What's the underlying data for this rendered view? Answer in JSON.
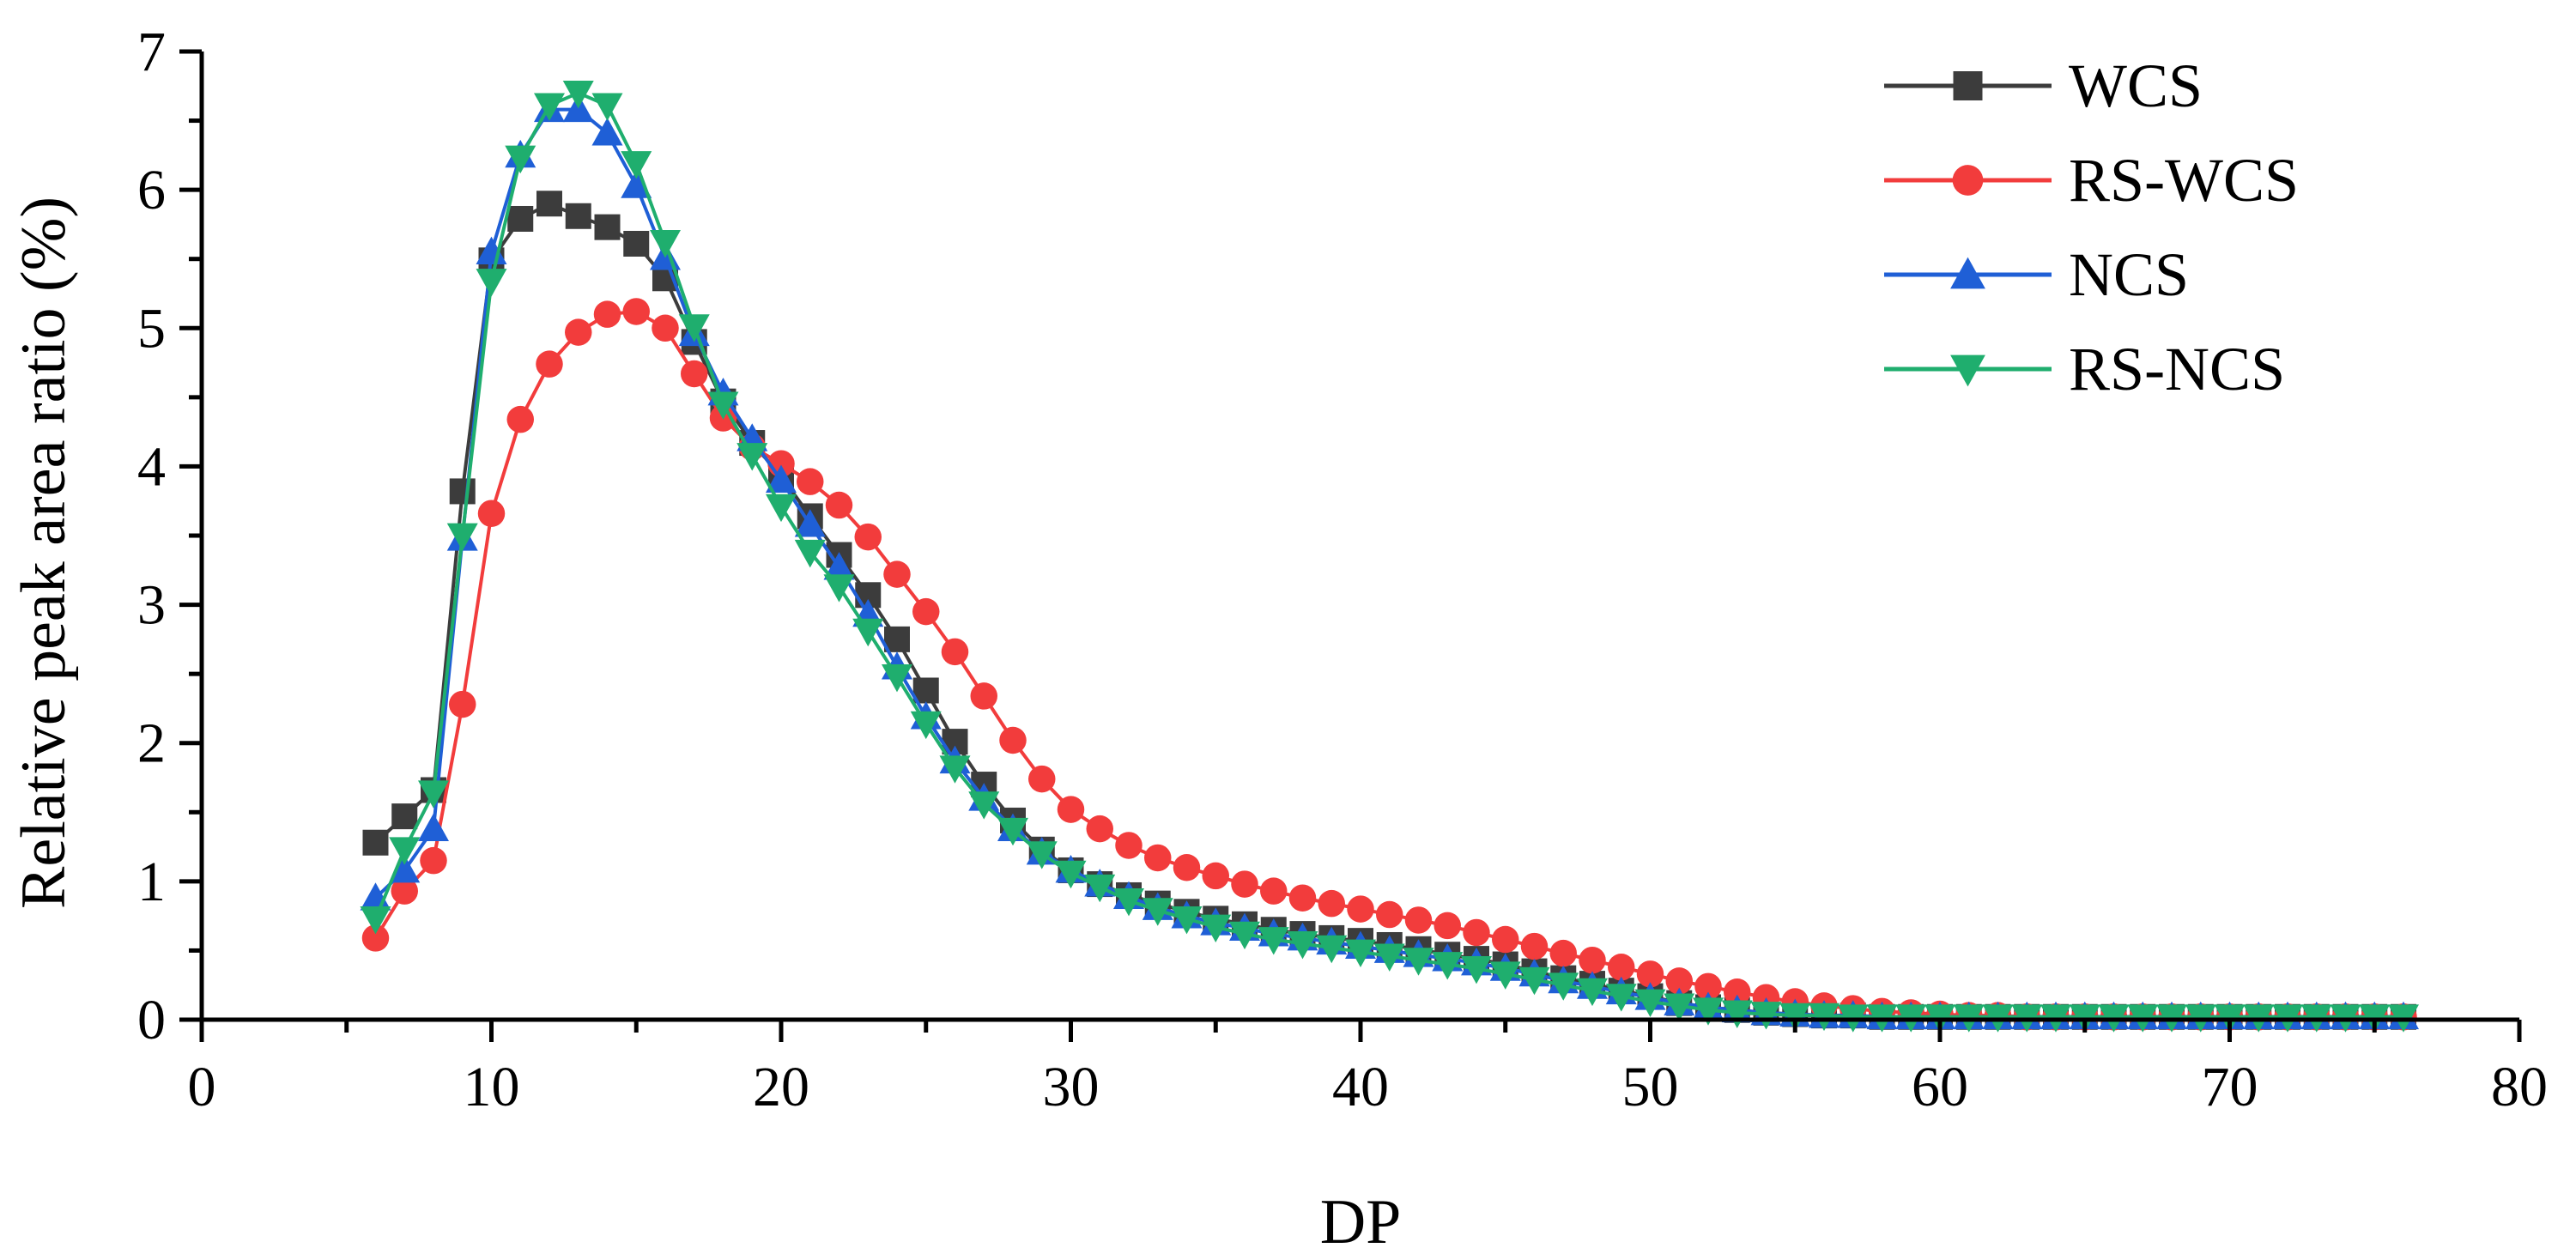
{
  "chart_data": {
    "type": "line",
    "title": "",
    "xlabel": "DP",
    "ylabel": "Relative peak area ratio (%)",
    "xlim": [
      0,
      80
    ],
    "ylim": [
      0,
      7
    ],
    "x_ticks": [
      0,
      10,
      20,
      30,
      40,
      50,
      60,
      70,
      80
    ],
    "x_tick_labels": [
      "0",
      "10",
      "20",
      "30",
      "40",
      "50",
      "60",
      "70",
      "80"
    ],
    "y_ticks": [
      0,
      1,
      2,
      3,
      4,
      5,
      6,
      7
    ],
    "y_tick_labels": [
      "0",
      "1",
      "2",
      "3",
      "4",
      "5",
      "6",
      "7"
    ],
    "grid": false,
    "legend_position": "top-right",
    "x": [
      6,
      7,
      8,
      9,
      10,
      11,
      12,
      13,
      14,
      15,
      16,
      17,
      18,
      19,
      20,
      21,
      22,
      23,
      24,
      25,
      26,
      27,
      28,
      29,
      30,
      31,
      32,
      33,
      34,
      35,
      36,
      37,
      38,
      39,
      40,
      41,
      42,
      43,
      44,
      45,
      46,
      47,
      48,
      49,
      50,
      51,
      52,
      53,
      54,
      55,
      56,
      57,
      58,
      59,
      60,
      61,
      62,
      63,
      64,
      65,
      66,
      67,
      68,
      69,
      70,
      71,
      72,
      73,
      74,
      75,
      76
    ],
    "series": [
      {
        "name": "WCS",
        "color": "#3c3c3c",
        "marker": "square",
        "values": [
          1.28,
          1.47,
          1.66,
          3.82,
          5.49,
          5.79,
          5.9,
          5.81,
          5.73,
          5.61,
          5.36,
          4.9,
          4.47,
          4.17,
          3.93,
          3.64,
          3.36,
          3.07,
          2.75,
          2.38,
          2.01,
          1.7,
          1.44,
          1.23,
          1.08,
          0.98,
          0.9,
          0.84,
          0.78,
          0.73,
          0.69,
          0.65,
          0.62,
          0.59,
          0.57,
          0.54,
          0.51,
          0.47,
          0.44,
          0.4,
          0.35,
          0.3,
          0.26,
          0.21,
          0.17,
          0.12,
          0.09,
          0.07,
          0.05,
          0.04,
          0.03,
          0.03,
          0.02,
          0.02,
          0.02,
          0.02,
          0.02,
          0.02,
          0.02,
          0.02,
          0.02,
          0.02,
          0.02,
          0.02,
          0.02,
          0.02,
          0.02,
          0.02,
          0.02,
          0.02,
          0.02
        ]
      },
      {
        "name": "RS-WCS",
        "color": "#f23c3c",
        "marker": "circle",
        "values": [
          0.59,
          0.93,
          1.15,
          2.28,
          3.66,
          4.34,
          4.74,
          4.97,
          5.1,
          5.12,
          5.0,
          4.67,
          4.35,
          4.14,
          4.02,
          3.89,
          3.72,
          3.49,
          3.22,
          2.95,
          2.66,
          2.34,
          2.02,
          1.74,
          1.52,
          1.38,
          1.26,
          1.17,
          1.1,
          1.04,
          0.98,
          0.93,
          0.88,
          0.84,
          0.8,
          0.76,
          0.72,
          0.68,
          0.63,
          0.58,
          0.53,
          0.48,
          0.43,
          0.38,
          0.33,
          0.28,
          0.24,
          0.2,
          0.16,
          0.13,
          0.1,
          0.08,
          0.06,
          0.05,
          0.04,
          0.03,
          0.03,
          0.02,
          0.02,
          0.02,
          0.02,
          0.02,
          0.02,
          0.02,
          0.02,
          0.02,
          0.02,
          0.02,
          0.02,
          0.02,
          0.02
        ]
      },
      {
        "name": "NCS",
        "color": "#1f5fd6",
        "marker": "triangle-up",
        "values": [
          0.88,
          1.08,
          1.38,
          3.48,
          5.55,
          6.25,
          6.58,
          6.58,
          6.41,
          6.03,
          5.51,
          4.96,
          4.53,
          4.2,
          3.9,
          3.58,
          3.27,
          2.93,
          2.55,
          2.19,
          1.87,
          1.6,
          1.38,
          1.21,
          1.08,
          0.98,
          0.89,
          0.81,
          0.75,
          0.7,
          0.66,
          0.62,
          0.59,
          0.56,
          0.53,
          0.5,
          0.47,
          0.44,
          0.41,
          0.37,
          0.33,
          0.28,
          0.24,
          0.2,
          0.16,
          0.12,
          0.09,
          0.07,
          0.05,
          0.04,
          0.03,
          0.03,
          0.02,
          0.02,
          0.02,
          0.02,
          0.02,
          0.02,
          0.02,
          0.02,
          0.02,
          0.02,
          0.02,
          0.02,
          0.02,
          0.02,
          0.02,
          0.02,
          0.02,
          0.02,
          0.02
        ]
      },
      {
        "name": "RS-NCS",
        "color": "#1fae6e",
        "marker": "triangle-down",
        "values": [
          0.73,
          1.23,
          1.64,
          3.5,
          5.34,
          6.23,
          6.61,
          6.7,
          6.61,
          6.19,
          5.62,
          5.01,
          4.45,
          4.08,
          3.71,
          3.38,
          3.13,
          2.81,
          2.48,
          2.14,
          1.82,
          1.56,
          1.37,
          1.2,
          1.06,
          0.96,
          0.86,
          0.79,
          0.73,
          0.67,
          0.62,
          0.58,
          0.55,
          0.52,
          0.49,
          0.46,
          0.43,
          0.4,
          0.37,
          0.33,
          0.29,
          0.25,
          0.21,
          0.17,
          0.13,
          0.1,
          0.07,
          0.05,
          0.04,
          0.03,
          0.03,
          0.02,
          0.02,
          0.02,
          0.02,
          0.02,
          0.02,
          0.02,
          0.02,
          0.02,
          0.02,
          0.02,
          0.02,
          0.02,
          0.02,
          0.02,
          0.02,
          0.02,
          0.02,
          0.02,
          0.02
        ]
      }
    ]
  }
}
